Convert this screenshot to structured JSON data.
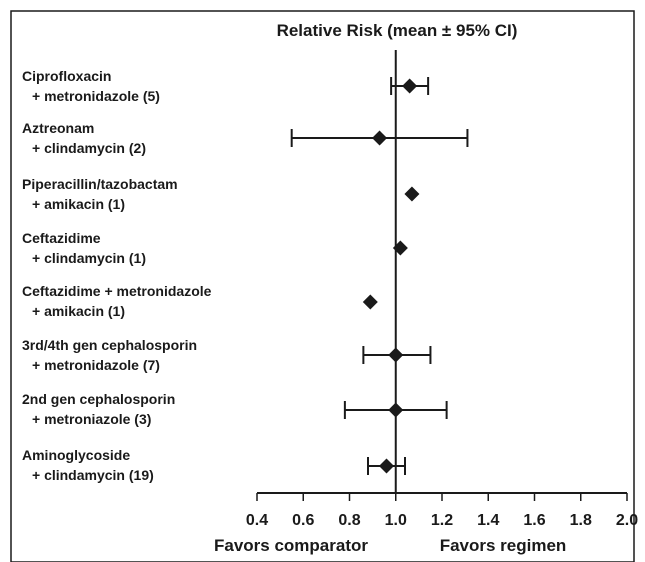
{
  "chart_data": {
    "type": "forest",
    "title": "Relative Risk (mean ± 95% CI)",
    "x_ticks": [
      "0.4",
      "0.6",
      "0.8",
      "1.0",
      "1.2",
      "1.4",
      "1.6",
      "1.8",
      "2.0"
    ],
    "xlim": [
      0.4,
      2.0
    ],
    "reference_value": 1.0,
    "left_label": "Favors comparator",
    "right_label": "Favors regimen",
    "grid": false,
    "rows": [
      {
        "line1": "Ciprofloxacin",
        "line2": "+ metronidazole (5)",
        "mean": 1.06,
        "lower": 0.98,
        "upper": 1.14
      },
      {
        "line1": "Aztreonam",
        "line2": "+ clindamycin (2)",
        "mean": 0.93,
        "lower": 0.55,
        "upper": 1.31
      },
      {
        "line1": "Piperacillin/tazobactam",
        "line2": "+ amikacin (1)",
        "mean": 1.07,
        "lower": null,
        "upper": null
      },
      {
        "line1": "Ceftazidime",
        "line2": "+ clindamycin (1)",
        "mean": 1.02,
        "lower": null,
        "upper": null
      },
      {
        "line1": "Ceftazidime + metronidazole",
        "line2": "+ amikacin (1)",
        "mean": 0.89,
        "lower": null,
        "upper": null
      },
      {
        "line1": "3rd/4th gen cephalosporin",
        "line2": "+ metronidazole (7)",
        "mean": 1.0,
        "lower": 0.86,
        "upper": 1.15
      },
      {
        "line1": "2nd gen cephalosporin",
        "line2": "+ metroniazole (3)",
        "mean": 1.0,
        "lower": 0.78,
        "upper": 1.22
      },
      {
        "line1": "Aminoglycoside",
        "line2": "+ clindamycin (19)",
        "mean": 0.96,
        "lower": 0.88,
        "upper": 1.04
      }
    ]
  }
}
